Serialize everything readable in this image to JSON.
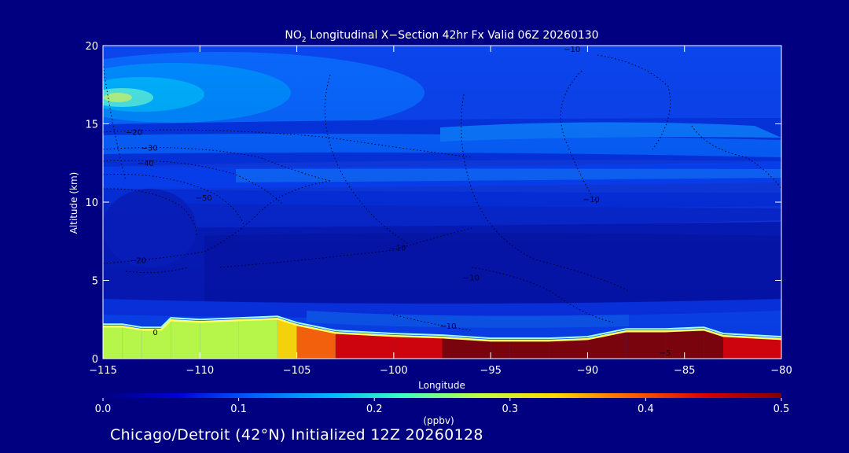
{
  "chart_data": {
    "type": "heatmap",
    "title": {
      "species": "NO",
      "subscript": "2",
      "rest": " Longitudinal X−Section 42hr  Fx Valid 06Z 20260130"
    },
    "xlabel": "Longitude",
    "ylabel": "Altitude (km)",
    "xlim": [
      -115,
      -80
    ],
    "ylim": [
      0,
      20
    ],
    "x_ticks": [
      -115,
      -110,
      -105,
      -100,
      -95,
      -90,
      -85,
      -80
    ],
    "x_tick_labels": [
      "−115",
      "−110",
      "−105",
      "−100",
      "−95",
      "−90",
      "−85",
      "−80"
    ],
    "y_ticks": [
      0,
      5,
      10,
      15,
      20
    ],
    "y_tick_labels": [
      "0",
      "5",
      "10",
      "15",
      "20"
    ],
    "colorbar": {
      "label": "(ppbv)",
      "min": 0.0,
      "max": 0.5,
      "ticks": [
        0.0,
        0.1,
        0.2,
        0.3,
        0.4,
        0.5
      ],
      "tick_labels": [
        "0.0",
        "0.1",
        "0.2",
        "0.3",
        "0.4",
        "0.5"
      ],
      "stops": [
        "#000080",
        "#0000d8",
        "#0060ff",
        "#00b4ff",
        "#40ffc0",
        "#c0ff40",
        "#ffd800",
        "#ff6000",
        "#d80000",
        "#800000"
      ]
    },
    "terrain_km": [
      [
        -115,
        1.8
      ],
      [
        -114,
        1.8
      ],
      [
        -113,
        1.6
      ],
      [
        -112,
        1.6
      ],
      [
        -111.5,
        2.2
      ],
      [
        -110,
        2.1
      ],
      [
        -108,
        2.2
      ],
      [
        -106,
        2.3
      ],
      [
        -105,
        1.9
      ],
      [
        -103,
        1.4
      ],
      [
        -100,
        1.2
      ],
      [
        -97.5,
        1.1
      ],
      [
        -95,
        0.9
      ],
      [
        -94,
        0.9
      ],
      [
        -92,
        0.9
      ],
      [
        -90,
        1.0
      ],
      [
        -88,
        1.5
      ],
      [
        -86,
        1.5
      ],
      [
        -84,
        1.6
      ],
      [
        -83,
        1.2
      ],
      [
        -80,
        1.0
      ]
    ],
    "surface_layer_ppbv": [
      [
        -115,
        0.25
      ],
      [
        -110,
        0.3
      ],
      [
        -106,
        0.3
      ],
      [
        -104,
        0.38
      ],
      [
        -100,
        0.45
      ],
      [
        -97,
        0.5
      ],
      [
        -92,
        0.5
      ],
      [
        -88,
        0.5
      ],
      [
        -84,
        0.5
      ],
      [
        -82,
        0.45
      ],
      [
        -80,
        0.4
      ]
    ],
    "contour_labels": [
      {
        "text": "−20",
        "lon": -113.4,
        "alt": 14.3
      },
      {
        "text": "−30",
        "lon": -112.6,
        "alt": 13.3
      },
      {
        "text": "−40",
        "lon": -112.8,
        "alt": 12.3
      },
      {
        "text": "−50",
        "lon": -109.8,
        "alt": 10.1
      },
      {
        "text": "−20",
        "lon": -113.2,
        "alt": 6.1
      },
      {
        "text": "0",
        "lon": -112.3,
        "alt": 1.5
      },
      {
        "text": "−10",
        "lon": -90.8,
        "alt": 19.6
      },
      {
        "text": "−10",
        "lon": -89.8,
        "alt": 10.0
      },
      {
        "text": "−10",
        "lon": -99.8,
        "alt": 6.9
      },
      {
        "text": "−10",
        "lon": -96.0,
        "alt": 5.0
      },
      {
        "text": "−10",
        "lon": -97.2,
        "alt": 1.9
      },
      {
        "text": "−5",
        "lon": -86.0,
        "alt": 0.2
      }
    ]
  },
  "footer": "Chicago/Detroit (42°N) Initialized 12Z 20260128"
}
